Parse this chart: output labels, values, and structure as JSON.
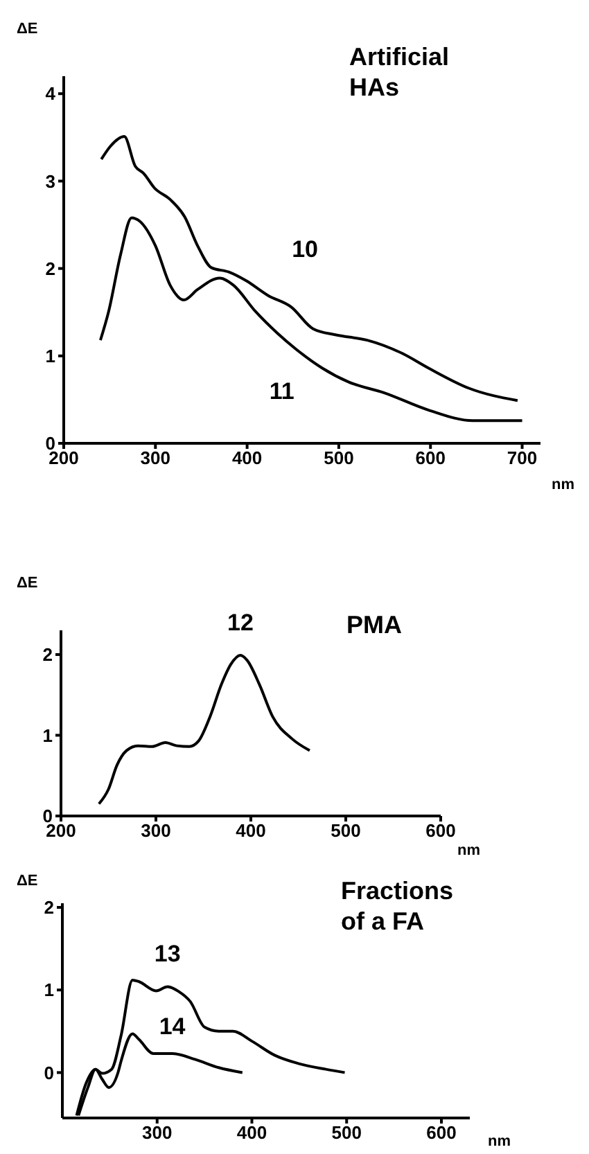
{
  "chart_data": [
    {
      "type": "line",
      "title": "Artificial HAs",
      "ylabel": "ΔE",
      "xlabel": "nm",
      "xlim": [
        200,
        720
      ],
      "xticks": [
        200,
        300,
        400,
        500,
        600,
        700
      ],
      "ylim": [
        0,
        4.2
      ],
      "yticks": [
        0,
        1,
        2,
        3,
        4
      ],
      "series": [
        {
          "name": "10",
          "color": "#000000",
          "x": [
            241,
            251,
            266,
            278,
            287,
            299,
            316,
            332,
            346,
            361,
            380,
            399,
            423,
            448,
            472,
            497,
            531,
            569,
            598,
            642,
            695
          ],
          "values": [
            3.25,
            3.4,
            3.51,
            3.17,
            3.09,
            2.92,
            2.79,
            2.59,
            2.26,
            2.01,
            1.96,
            1.86,
            1.69,
            1.56,
            1.31,
            1.24,
            1.18,
            1.03,
            0.86,
            0.63,
            0.49
          ]
        },
        {
          "name": "11",
          "color": "#000000",
          "x": [
            240,
            249,
            262,
            274,
            283,
            300,
            316,
            331,
            346,
            370,
            385,
            409,
            433,
            453,
            482,
            511,
            549,
            598,
            646,
            700
          ],
          "values": [
            1.18,
            1.51,
            2.16,
            2.58,
            2.54,
            2.26,
            1.81,
            1.64,
            1.76,
            1.89,
            1.81,
            1.51,
            1.26,
            1.08,
            0.86,
            0.7,
            0.58,
            0.38,
            0.26,
            0.26
          ]
        }
      ]
    },
    {
      "type": "line",
      "title": "PMA",
      "ylabel": "ΔE",
      "xlabel": "nm",
      "xlim": [
        200,
        600
      ],
      "xticks": [
        200,
        300,
        400,
        500,
        600
      ],
      "ylim": [
        0,
        2.3
      ],
      "yticks": [
        0,
        1,
        2
      ],
      "series": [
        {
          "name": "12",
          "color": "#000000",
          "x": [
            240,
            250,
            259,
            269,
            281,
            296,
            310,
            322,
            335,
            345,
            357,
            369,
            379,
            389,
            396,
            409,
            423,
            443,
            462
          ],
          "values": [
            0.15,
            0.33,
            0.63,
            0.81,
            0.87,
            0.86,
            0.91,
            0.87,
            0.86,
            0.93,
            1.23,
            1.63,
            1.88,
            1.99,
            1.93,
            1.63,
            1.23,
            0.96,
            0.81
          ]
        }
      ]
    },
    {
      "type": "line",
      "title": "Fractions of a FA",
      "ylabel": "ΔE",
      "xlabel": "nm",
      "xlim": [
        200,
        630
      ],
      "xticks": [
        300,
        400,
        500,
        600
      ],
      "ylim": [
        -0.55,
        2.05
      ],
      "yticks": [
        0,
        1,
        2
      ],
      "series": [
        {
          "name": "13",
          "color": "#000000",
          "x": [
            215,
            225,
            235,
            242,
            252,
            262,
            274,
            281,
            299,
            311,
            323,
            335,
            350,
            365,
            380,
            400,
            424,
            449,
            478,
            498
          ],
          "values": [
            -0.52,
            -0.13,
            0.04,
            -0.01,
            0.04,
            0.45,
            1.12,
            1.1,
            0.99,
            1.04,
            0.98,
            0.86,
            0.55,
            0.5,
            0.5,
            0.38,
            0.21,
            0.11,
            0.04,
            0
          ]
        },
        {
          "name": "14",
          "color": "#000000",
          "x": [
            217,
            227,
            235,
            242,
            249,
            259,
            262,
            274,
            281,
            296,
            316,
            340,
            365,
            390
          ],
          "values": [
            -0.52,
            -0.18,
            0.04,
            -0.08,
            -0.18,
            0.01,
            0.14,
            0.47,
            0.4,
            0.23,
            0.23,
            0.16,
            0.06,
            0
          ]
        }
      ]
    }
  ]
}
